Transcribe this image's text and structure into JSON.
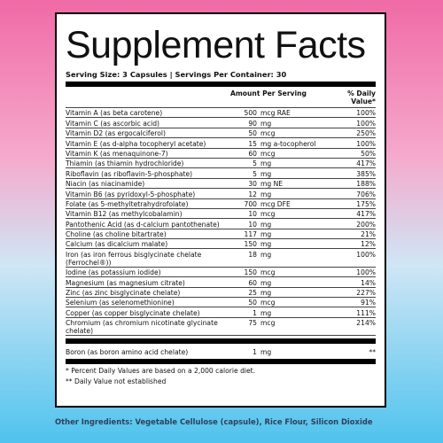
{
  "label": {
    "title": "Supplement Facts",
    "serving": "Serving Size: 3 Capsules | Servings Per Container: 30",
    "header": {
      "amount": "Amount Per Serving",
      "dv": "% Daily Value*"
    },
    "rows": [
      {
        "name": "Vitamin A (as beta carotene)",
        "amount": 500,
        "unit": "mcg RAE",
        "dv": "100%"
      },
      {
        "name": "Vitamin C (as ascorbic acid)",
        "amount": 90,
        "unit": "mg",
        "dv": "100%"
      },
      {
        "name": "Vitamin D2 (as ergocalciferol)",
        "amount": 50,
        "unit": "mcg",
        "dv": "250%"
      },
      {
        "name": "Vitamin E (as d-alpha tocopheryl acetate)",
        "amount": 15,
        "unit": "mg a-tocopherol",
        "dv": "100%"
      },
      {
        "name": "Vitamin K (as menaquinone-7)",
        "amount": 60,
        "unit": "mcg",
        "dv": "50%"
      },
      {
        "name": "Thiamin (as thiamin hydrochloride)",
        "amount": 5,
        "unit": "mg",
        "dv": "417%"
      },
      {
        "name": "Riboflavin (as riboflavin-5-phosphate)",
        "amount": 5,
        "unit": "mg",
        "dv": "385%"
      },
      {
        "name": "Niacin (as niacinamide)",
        "amount": 30,
        "unit": "mg NE",
        "dv": "188%"
      },
      {
        "name": "Vitamin B6 (as pyridoxyl-5-phosphate)",
        "amount": 12,
        "unit": "mg",
        "dv": "706%"
      },
      {
        "name": "Folate (as 5-methyltetrahydrofolate)",
        "amount": 700,
        "unit": "mcg DFE",
        "dv": "175%"
      },
      {
        "name": "Vitamin B12 (as methylcobalamin)",
        "amount": 10,
        "unit": "mcg",
        "dv": "417%"
      },
      {
        "name": "Pantothenic Acid (as d-calcium pantothenate)",
        "amount": 10,
        "unit": "mg",
        "dv": "200%"
      },
      {
        "name": "Choline (as choline bitartrate)",
        "amount": 117,
        "unit": "mg",
        "dv": "21%"
      },
      {
        "name": "Calcium (as dicalcium malate)",
        "amount": 150,
        "unit": "mg",
        "dv": "12%"
      },
      {
        "name": "Iron (as iron ferrous bisglycinate chelate (Ferrochel®))",
        "amount": 18,
        "unit": "mg",
        "dv": "100%"
      },
      {
        "name": "Iodine (as potassium iodide)",
        "amount": 150,
        "unit": "mcg",
        "dv": "100%"
      },
      {
        "name": "Magnesium (as magnesium citrate)",
        "amount": 60,
        "unit": "mg",
        "dv": "14%"
      },
      {
        "name": "Zinc (as zinc bisglycinate chelate)",
        "amount": 25,
        "unit": "mg",
        "dv": "227%"
      },
      {
        "name": "Selenium (as selenomethionine)",
        "amount": 50,
        "unit": "mcg",
        "dv": "91%"
      },
      {
        "name": "Copper (as copper bisglycinate chelate)",
        "amount": 1,
        "unit": "mg",
        "dv": "111%"
      },
      {
        "name": "Chromium (as chromium nicotinate glycinate chelate)",
        "amount": 75,
        "unit": "mcg",
        "dv": "214%"
      }
    ],
    "extra": {
      "name": "Boron (as boron amino acid chelate)",
      "amount": 1,
      "unit": "mg",
      "dv": "**"
    },
    "footnotes": [
      "* Percent Daily Values are based on a 2,000 calorie diet.",
      "** Daily Value not established"
    ]
  },
  "other_ingredients": "Other Ingredients: Vegetable Cellulose (capsule), Rice Flour, Silicon Dioxide"
}
